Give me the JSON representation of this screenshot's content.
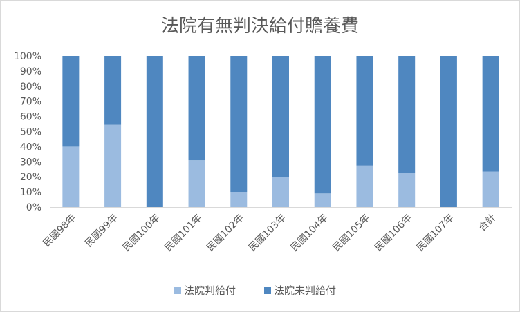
{
  "chart_data": {
    "type": "bar",
    "stacked": true,
    "percent": true,
    "title": "法院有無判決給付贍養費",
    "categories": [
      "民國98年",
      "民國99年",
      "民國100年",
      "民國101年",
      "民國102年",
      "民國103年",
      "民國104年",
      "民國105年",
      "民國106年",
      "民國107年",
      "合計"
    ],
    "series": [
      {
        "name": "法院判給付",
        "color": "#9bbbe0",
        "values": [
          40,
          54.5,
          0,
          31,
          10,
          20,
          9,
          27.5,
          22.5,
          0,
          23.5
        ]
      },
      {
        "name": "法院未判給付",
        "color": "#4f87c0",
        "values": [
          60,
          45.5,
          100,
          69,
          90,
          80,
          91,
          72.5,
          77.5,
          100,
          76.5
        ]
      }
    ],
    "y_ticks": [
      "0%",
      "10%",
      "20%",
      "30%",
      "40%",
      "50%",
      "60%",
      "70%",
      "80%",
      "90%",
      "100%"
    ],
    "ylim": [
      0,
      100
    ],
    "grid": false,
    "legend_position": "bottom"
  }
}
